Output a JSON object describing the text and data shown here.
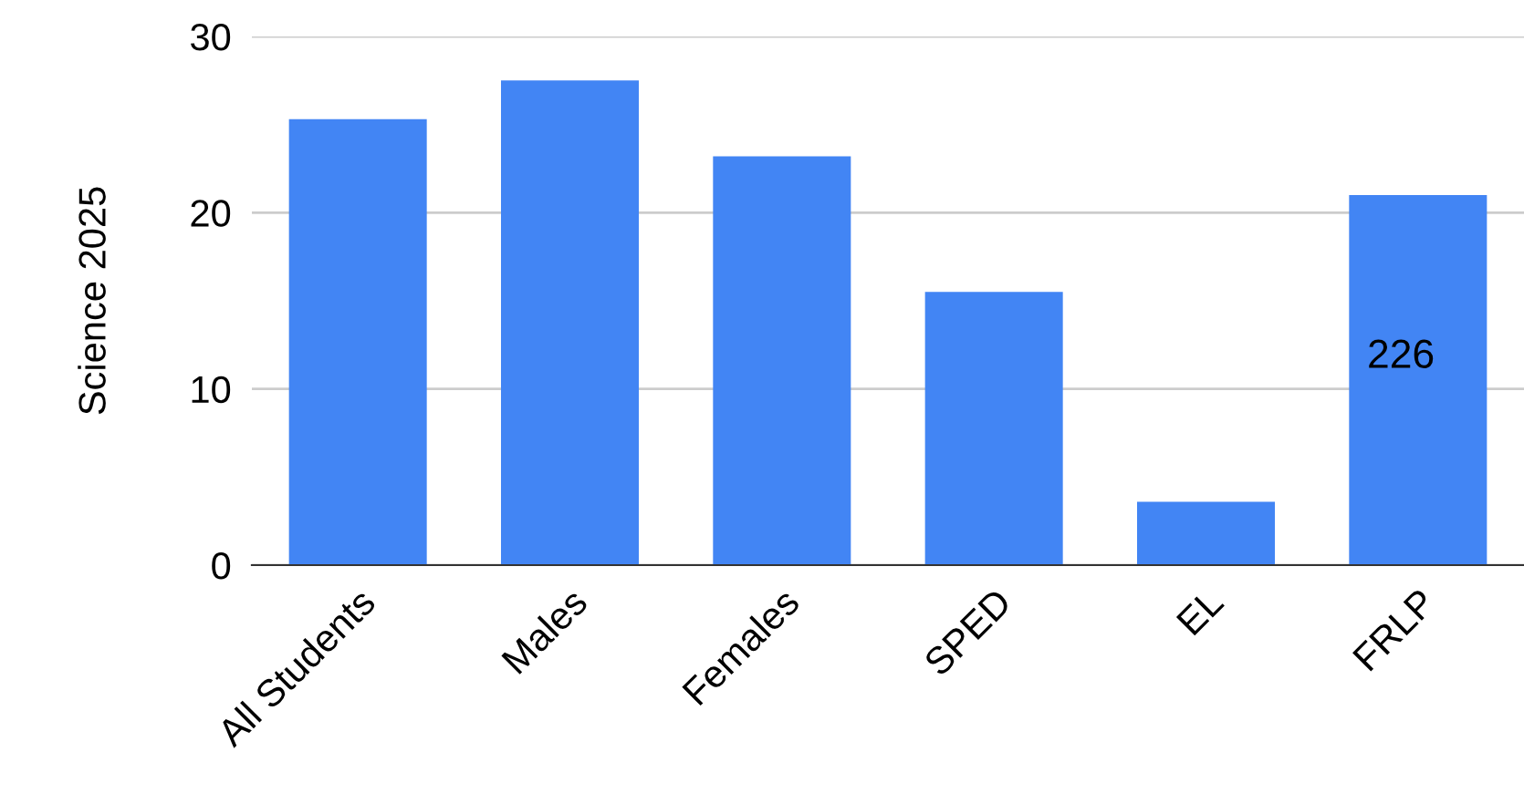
{
  "chart_data": {
    "type": "bar",
    "ylabel": "Science 2025",
    "categories": [
      "All Students",
      "Males",
      "Females",
      "SPED",
      "EL",
      "FRLP"
    ],
    "values": [
      25.3,
      27.5,
      23.2,
      15.5,
      3.6,
      21.0
    ],
    "color": "#4285f4",
    "ylim": [
      0,
      30
    ],
    "yticks": [
      0,
      10,
      20,
      30
    ],
    "grid": "y",
    "annotations": [
      "226"
    ]
  }
}
